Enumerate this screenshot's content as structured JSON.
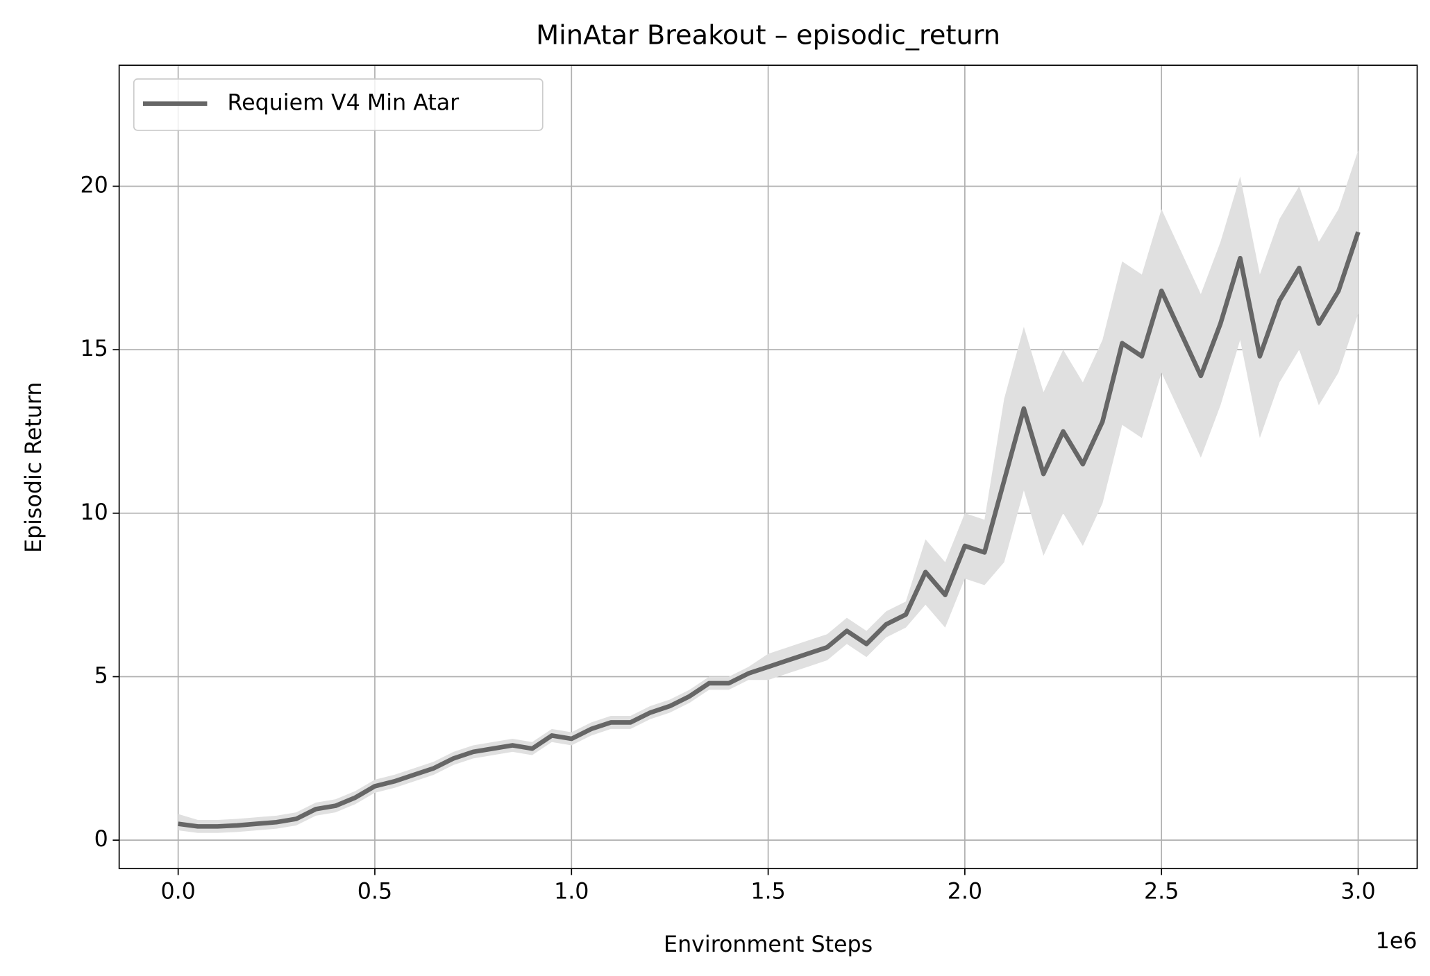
{
  "chart_data": {
    "type": "line",
    "title": "MinAtar Breakout – episodic_return",
    "x_label": "Environment Steps",
    "y_label": "Episodic Return",
    "x_offset_label": "1e6",
    "xlim": [
      -150000,
      3150000
    ],
    "ylim": [
      -0.87,
      23.7
    ],
    "xticks": [
      {
        "value": 0,
        "label": "0.0"
      },
      {
        "value": 500000,
        "label": "0.5"
      },
      {
        "value": 1000000,
        "label": "1.0"
      },
      {
        "value": 1500000,
        "label": "1.5"
      },
      {
        "value": 2000000,
        "label": "2.0"
      },
      {
        "value": 2500000,
        "label": "2.5"
      },
      {
        "value": 3000000,
        "label": "3.0"
      }
    ],
    "yticks": [
      0,
      5,
      10,
      15,
      20
    ],
    "grid": true,
    "legend": "upper left",
    "x": [
      0,
      50000,
      100000,
      150000,
      200000,
      250000,
      300000,
      350000,
      400000,
      450000,
      500000,
      550000,
      600000,
      650000,
      700000,
      750000,
      800000,
      850000,
      900000,
      950000,
      1000000,
      1050000,
      1100000,
      1150000,
      1200000,
      1250000,
      1300000,
      1350000,
      1400000,
      1450000,
      1500000,
      1550000,
      1600000,
      1650000,
      1700000,
      1750000,
      1800000,
      1850000,
      1900000,
      1950000,
      2000000,
      2050000,
      2100000,
      2150000,
      2200000,
      2250000,
      2300000,
      2350000,
      2400000,
      2450000,
      2500000,
      2550000,
      2600000,
      2650000,
      2700000,
      2750000,
      2800000,
      2850000,
      2900000,
      2950000,
      3000000
    ],
    "series": [
      {
        "name": "Requiem V4 Min Atar",
        "color": "#666666",
        "band_color": "#e0e0e0",
        "values": [
          0.5,
          0.42,
          0.42,
          0.45,
          0.5,
          0.55,
          0.65,
          0.95,
          1.05,
          1.3,
          1.65,
          1.8,
          2.0,
          2.2,
          2.5,
          2.7,
          2.8,
          2.9,
          2.8,
          3.2,
          3.1,
          3.4,
          3.6,
          3.6,
          3.9,
          4.1,
          4.4,
          4.8,
          4.8,
          5.1,
          5.3,
          5.5,
          5.7,
          5.9,
          6.4,
          6.0,
          6.6,
          6.9,
          8.2,
          7.5,
          9.0,
          8.8,
          11.0,
          13.2,
          11.2,
          12.5,
          11.5,
          12.8,
          15.2,
          14.8,
          16.8,
          15.5,
          14.2,
          15.8,
          17.8,
          14.8,
          16.5,
          17.5,
          15.8,
          16.8,
          18.6
        ],
        "lower": [
          0.3,
          0.22,
          0.22,
          0.25,
          0.3,
          0.35,
          0.45,
          0.75,
          0.85,
          1.1,
          1.45,
          1.6,
          1.8,
          2.0,
          2.3,
          2.5,
          2.6,
          2.7,
          2.6,
          3.0,
          2.9,
          3.2,
          3.4,
          3.4,
          3.7,
          3.9,
          4.2,
          4.6,
          4.6,
          4.9,
          4.9,
          5.1,
          5.3,
          5.5,
          6.0,
          5.6,
          6.2,
          6.5,
          7.2,
          6.5,
          8.0,
          7.8,
          8.5,
          10.7,
          8.7,
          10.0,
          9.0,
          10.3,
          12.7,
          12.3,
          14.3,
          13.0,
          11.7,
          13.3,
          15.3,
          12.3,
          14.0,
          15.0,
          13.3,
          14.3,
          16.1
        ],
        "upper": [
          0.8,
          0.62,
          0.62,
          0.65,
          0.7,
          0.75,
          0.85,
          1.15,
          1.25,
          1.5,
          1.85,
          2.0,
          2.2,
          2.4,
          2.7,
          2.9,
          3.0,
          3.1,
          3.0,
          3.4,
          3.3,
          3.6,
          3.8,
          3.8,
          4.1,
          4.3,
          4.6,
          5.0,
          5.0,
          5.3,
          5.7,
          5.9,
          6.1,
          6.3,
          6.8,
          6.4,
          7.0,
          7.3,
          9.2,
          8.5,
          10.0,
          9.8,
          13.5,
          15.7,
          13.7,
          15.0,
          14.0,
          15.3,
          17.7,
          17.3,
          19.3,
          18.0,
          16.7,
          18.3,
          20.3,
          17.3,
          19.0,
          20.0,
          18.3,
          19.3,
          21.1
        ]
      }
    ]
  }
}
